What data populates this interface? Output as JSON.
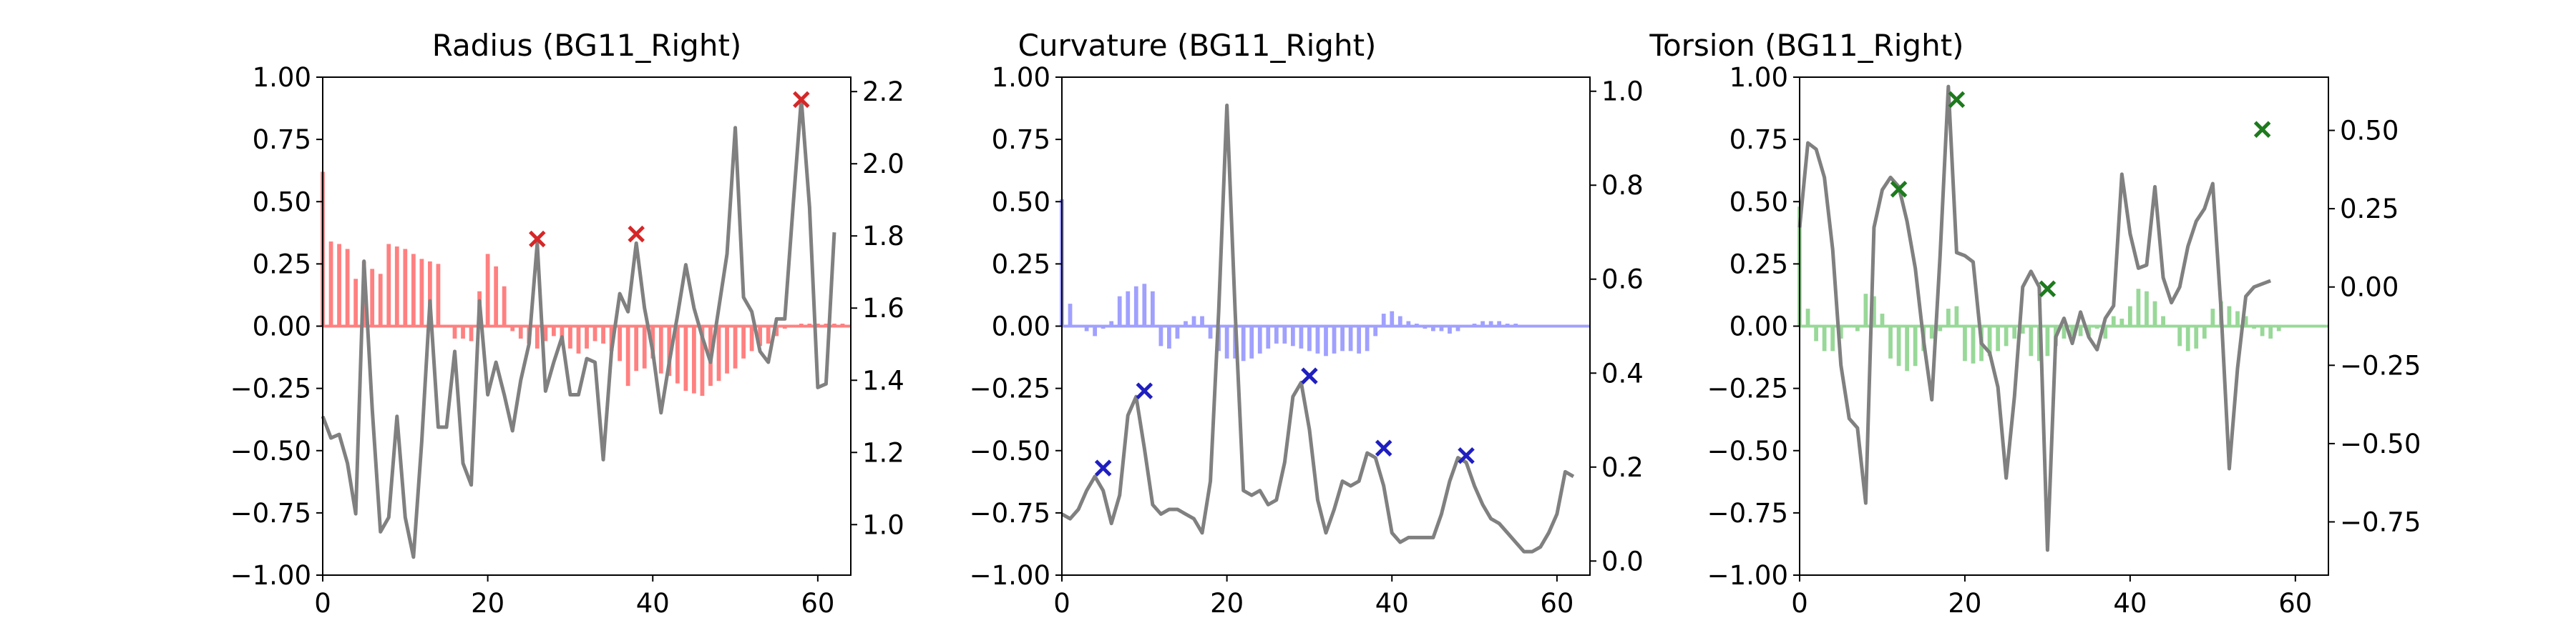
{
  "chart_data": [
    {
      "type": "bar",
      "title": "Radius (BG11_Right)",
      "xlim": [
        0,
        64
      ],
      "ylim": [
        -1.0,
        1.0
      ],
      "y2lim": [
        0.86,
        2.24
      ],
      "xticks": [
        0,
        20,
        40,
        60
      ],
      "xtick_labels": [
        "0",
        "20",
        "40",
        "60"
      ],
      "yticks": [
        -1.0,
        -0.75,
        -0.5,
        -0.25,
        0.0,
        0.25,
        0.5,
        0.75,
        1.0
      ],
      "ytick_labels": [
        "−1.00",
        "−0.75",
        "−0.50",
        "−0.25",
        "0.00",
        "0.25",
        "0.50",
        "0.75",
        "1.00"
      ],
      "y2ticks": [
        1.0,
        1.2,
        1.4,
        1.6,
        1.8,
        2.0,
        2.2
      ],
      "y2tick_labels": [
        "1.0",
        "1.2",
        "1.4",
        "1.6",
        "1.8",
        "2.0",
        "2.2"
      ],
      "bar_color": "#ff8080",
      "marker_color": "#d62728",
      "line_color": "#808080",
      "bars": [
        0.62,
        0.34,
        0.33,
        0.31,
        0.19,
        0.26,
        0.23,
        0.21,
        0.33,
        0.32,
        0.31,
        0.29,
        0.27,
        0.26,
        0.25,
        0.0,
        -0.05,
        -0.05,
        -0.06,
        0.14,
        0.29,
        0.24,
        0.16,
        -0.02,
        -0.05,
        -0.07,
        -0.09,
        -0.06,
        -0.04,
        -0.07,
        -0.09,
        -0.11,
        -0.09,
        -0.06,
        -0.07,
        -0.1,
        -0.14,
        -0.24,
        -0.18,
        -0.17,
        -0.13,
        -0.19,
        -0.2,
        -0.23,
        -0.26,
        -0.27,
        -0.28,
        -0.24,
        -0.22,
        -0.19,
        -0.17,
        -0.13,
        -0.1,
        -0.08,
        -0.07,
        -0.04,
        -0.01,
        0.0,
        0.01,
        0.01,
        0.01,
        0.01,
        0.01,
        0.01
      ],
      "line": [
        1.3,
        1.24,
        1.25,
        1.17,
        1.03,
        1.73,
        1.32,
        0.98,
        1.02,
        1.3,
        1.02,
        0.91,
        1.23,
        1.62,
        1.27,
        1.27,
        1.48,
        1.17,
        1.11,
        1.62,
        1.36,
        1.45,
        1.36,
        1.26,
        1.4,
        1.5,
        1.78,
        1.37,
        1.45,
        1.52,
        1.36,
        1.36,
        1.46,
        1.45,
        1.18,
        1.48,
        1.64,
        1.59,
        1.78,
        1.6,
        1.48,
        1.31,
        1.45,
        1.58,
        1.72,
        1.6,
        1.52,
        1.45,
        1.6,
        1.75,
        2.1,
        1.63,
        1.59,
        1.48,
        1.45,
        1.57,
        1.57,
        1.88,
        2.18,
        1.88,
        1.38,
        1.39,
        1.81
      ]
    },
    {
      "type": "bar",
      "title": "Curvature (BG11_Right)",
      "xlim": [
        0,
        64
      ],
      "ylim": [
        -1.0,
        1.0
      ],
      "y2lim": [
        -0.03,
        1.03
      ],
      "xticks": [
        0,
        20,
        40,
        60
      ],
      "xtick_labels": [
        "0",
        "20",
        "40",
        "60"
      ],
      "yticks": [
        -1.0,
        -0.75,
        -0.5,
        -0.25,
        0.0,
        0.25,
        0.5,
        0.75,
        1.0
      ],
      "ytick_labels": [
        "−1.00",
        "−0.75",
        "−0.50",
        "−0.25",
        "0.00",
        "0.25",
        "0.50",
        "0.75",
        "1.00"
      ],
      "y2ticks": [
        0.0,
        0.2,
        0.4,
        0.6,
        0.8,
        1.0
      ],
      "y2tick_labels": [
        "0.0",
        "0.2",
        "0.4",
        "0.6",
        "0.8",
        "1.0"
      ],
      "bar_color": "#a0a0ff",
      "marker_color": "#1f1fc0",
      "line_color": "#808080",
      "bars": [
        0.51,
        0.09,
        0.0,
        -0.02,
        -0.04,
        -0.01,
        0.02,
        0.12,
        0.14,
        0.16,
        0.17,
        0.14,
        -0.08,
        -0.09,
        -0.05,
        0.02,
        0.04,
        0.04,
        -0.05,
        -0.1,
        -0.13,
        -0.13,
        -0.14,
        -0.13,
        -0.11,
        -0.09,
        -0.07,
        -0.07,
        -0.08,
        -0.09,
        -0.1,
        -0.11,
        -0.12,
        -0.11,
        -0.1,
        -0.1,
        -0.11,
        -0.1,
        -0.04,
        0.05,
        0.06,
        0.04,
        0.02,
        0.01,
        -0.01,
        -0.02,
        -0.02,
        -0.03,
        -0.02,
        0.0,
        0.01,
        0.02,
        0.02,
        0.02,
        0.01,
        0.01,
        0.0,
        0.0,
        0.0,
        0.0,
        0.0,
        0.0,
        0.0,
        0.0
      ],
      "line": [
        0.1,
        0.09,
        0.11,
        0.15,
        0.18,
        0.15,
        0.08,
        0.14,
        0.31,
        0.35,
        0.24,
        0.12,
        0.1,
        0.11,
        0.11,
        0.1,
        0.09,
        0.06,
        0.17,
        0.53,
        0.97,
        0.53,
        0.15,
        0.14,
        0.15,
        0.12,
        0.13,
        0.21,
        0.35,
        0.38,
        0.28,
        0.13,
        0.06,
        0.11,
        0.17,
        0.16,
        0.17,
        0.23,
        0.22,
        0.16,
        0.06,
        0.04,
        0.05,
        0.05,
        0.05,
        0.05,
        0.1,
        0.17,
        0.22,
        0.21,
        0.16,
        0.12,
        0.09,
        0.08,
        0.06,
        0.04,
        0.02,
        0.02,
        0.03,
        0.06,
        0.1,
        0.19,
        0.18
      ]
    },
    {
      "type": "bar",
      "title": "Torsion (BG11_Right)",
      "xlim": [
        0,
        64
      ],
      "ylim": [
        -1.0,
        1.0
      ],
      "y2lim": [
        -0.92,
        0.67
      ],
      "xticks": [
        0,
        20,
        40,
        60
      ],
      "xtick_labels": [
        "0",
        "20",
        "40",
        "60"
      ],
      "yticks": [
        -1.0,
        -0.75,
        -0.5,
        -0.25,
        0.0,
        0.25,
        0.5,
        0.75,
        1.0
      ],
      "ytick_labels": [
        "−1.00",
        "−0.75",
        "−0.50",
        "−0.25",
        "0.00",
        "0.25",
        "0.50",
        "0.75",
        "1.00"
      ],
      "y2ticks": [
        -0.75,
        -0.5,
        -0.25,
        0.0,
        0.25,
        0.5
      ],
      "y2tick_labels": [
        "−0.75",
        "−0.50",
        "−0.25",
        "0.00",
        "0.25",
        "0.50"
      ],
      "bar_color": "#98d898",
      "marker_color": "#1e7a1e",
      "line_color": "#808080",
      "bars": [
        0.48,
        0.07,
        -0.06,
        -0.1,
        -0.1,
        -0.05,
        0.0,
        -0.02,
        0.13,
        0.12,
        0.05,
        -0.13,
        -0.16,
        -0.18,
        -0.16,
        -0.1,
        -0.05,
        -0.02,
        0.07,
        0.08,
        -0.14,
        -0.15,
        -0.14,
        -0.12,
        -0.1,
        -0.08,
        -0.05,
        -0.03,
        -0.12,
        -0.14,
        -0.12,
        -0.08,
        -0.05,
        -0.04,
        -0.04,
        -0.04,
        -0.01,
        -0.05,
        0.04,
        0.03,
        0.08,
        0.15,
        0.14,
        0.1,
        0.04,
        0.0,
        -0.08,
        -0.1,
        -0.09,
        -0.05,
        0.07,
        0.1,
        0.08,
        0.06,
        0.04,
        -0.01,
        -0.04,
        -0.05,
        -0.02,
        0.0,
        0.0,
        0.0,
        0.0,
        0.0
      ],
      "line": [
        0.19,
        0.46,
        0.44,
        0.35,
        0.12,
        -0.25,
        -0.42,
        -0.45,
        -0.69,
        0.19,
        0.31,
        0.35,
        0.32,
        0.21,
        0.06,
        -0.17,
        -0.36,
        0.1,
        0.64,
        0.11,
        0.1,
        0.08,
        -0.18,
        -0.21,
        -0.32,
        -0.61,
        -0.35,
        0.0,
        0.05,
        0.0,
        -0.84,
        -0.16,
        -0.1,
        -0.18,
        -0.08,
        -0.16,
        -0.2,
        -0.1,
        -0.06,
        0.36,
        0.17,
        0.06,
        0.07,
        0.32,
        0.03,
        -0.05,
        0.0,
        0.13,
        0.21,
        0.25,
        0.33,
        -0.07,
        -0.58,
        -0.26,
        -0.03,
        0.0,
        0.01,
        0.02
      ]
    }
  ],
  "peaks": [
    [
      {
        "x": 26,
        "y": 0.35
      },
      {
        "x": 38,
        "y": 0.37
      },
      {
        "x": 58,
        "y": 0.91
      }
    ],
    [
      {
        "x": 5,
        "y": -0.57
      },
      {
        "x": 10,
        "y": -0.26
      },
      {
        "x": 30,
        "y": -0.2
      },
      {
        "x": 39,
        "y": -0.49
      },
      {
        "x": 49,
        "y": -0.52
      }
    ],
    [
      {
        "x": 12,
        "y": 0.55
      },
      {
        "x": 19,
        "y": 0.91
      },
      {
        "x": 30,
        "y": 0.15
      },
      {
        "x": 56,
        "y": 0.79
      }
    ]
  ]
}
